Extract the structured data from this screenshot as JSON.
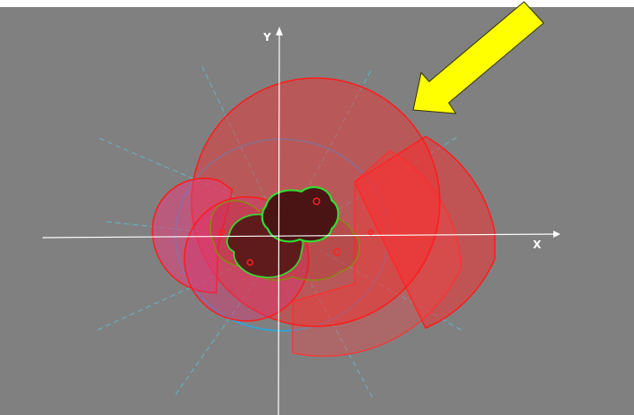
{
  "axes": {
    "x_label": "X",
    "y_label": "Y"
  },
  "colors": {
    "background": "#808080",
    "axis": "#ffffff",
    "guide_line": "#5bc0de",
    "region_fill": "#ff2a2a",
    "region_stroke": "#ff1a1a",
    "intersection_fill": "#5a1a1a",
    "intersection_stroke": "#33dd33",
    "marker": "#ff2020",
    "pointer_arrow": "#ffff00"
  },
  "icons": {
    "pointer": "yellow-arrow-icon"
  }
}
